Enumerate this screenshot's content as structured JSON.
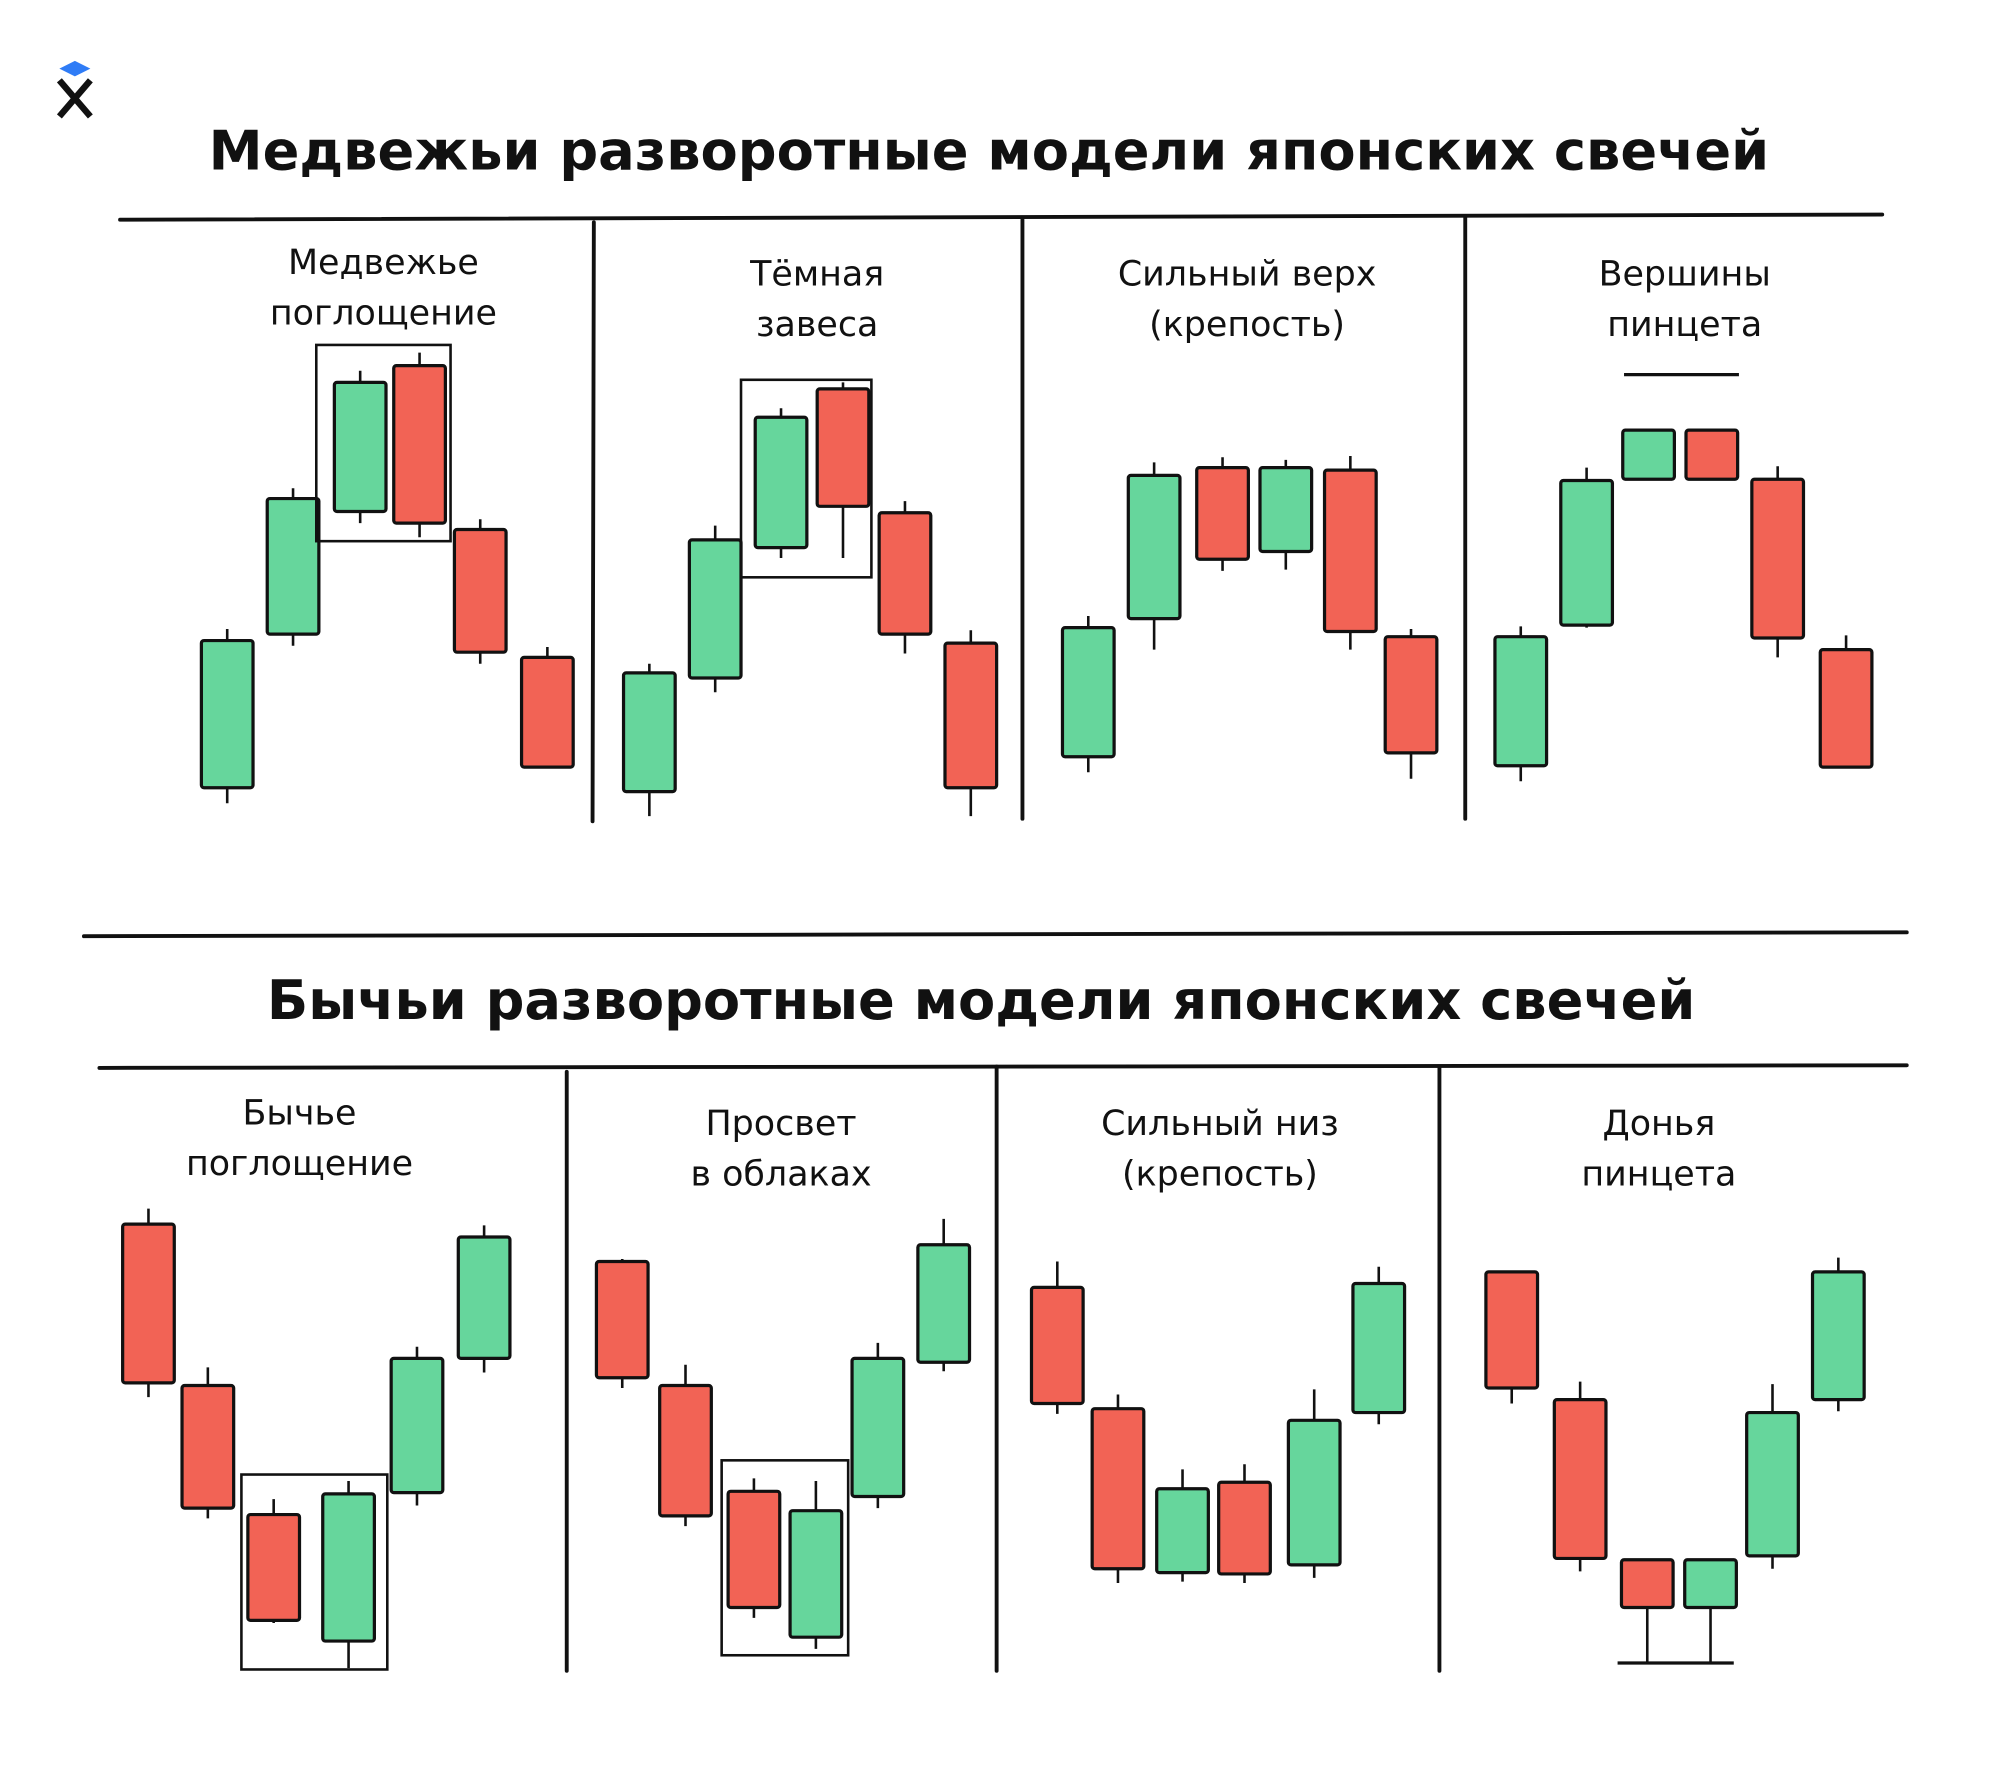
{
  "sections": [
    {
      "title": "Медвежьи разворотные модели японских свечей",
      "patterns": [
        {
          "label": [
            "Медвежье",
            "поглощение"
          ]
        },
        {
          "label": [
            "Тёмная",
            "завеса"
          ]
        },
        {
          "label": [
            "Сильный верх",
            "(крепость)"
          ]
        },
        {
          "label": [
            "Вершины",
            "пинцета"
          ]
        }
      ]
    },
    {
      "title": "Бычьи разворотные модели японских свечей",
      "patterns": [
        {
          "label": [
            "Бычье",
            "поглощение"
          ]
        },
        {
          "label": [
            "Просвет",
            "в облаках"
          ]
        },
        {
          "label": [
            "Сильный низ",
            "(крепость)"
          ]
        },
        {
          "label": [
            "Донья",
            "пинцета"
          ]
        }
      ]
    }
  ]
}
